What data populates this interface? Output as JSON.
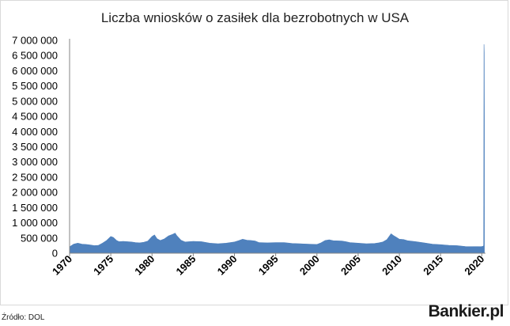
{
  "chart_data": {
    "type": "area",
    "title": "Liczba wniosków o zasiłek dla bezrobotnych w USA",
    "xlabel": "",
    "ylabel": "",
    "series_color": "#4f81bd",
    "xlim": [
      1970,
      2020.45
    ],
    "ylim": [
      0,
      7000000
    ],
    "ytick_labels": [
      "0",
      "500 000",
      "1 000 000",
      "1 500 000",
      "2 000 000",
      "2 500 000",
      "3 000 000",
      "3 500 000",
      "4 000 000",
      "4 500 000",
      "5 000 000",
      "5 500 000",
      "6 000 000",
      "6 500 000",
      "7 000 000"
    ],
    "xtick_labels": [
      "1970",
      "1975",
      "1980",
      "1985",
      "1990",
      "1995",
      "2000",
      "2005",
      "2010",
      "2015",
      "2020"
    ],
    "x": [
      1970,
      1970.5,
      1971,
      1971.5,
      1972,
      1972.5,
      1973,
      1973.5,
      1974,
      1974.5,
      1975,
      1975.3,
      1975.7,
      1976,
      1976.5,
      1977,
      1977.5,
      1978,
      1978.5,
      1979,
      1979.5,
      1980,
      1980.3,
      1980.6,
      1981,
      1981.5,
      1982,
      1982.5,
      1982.8,
      1983,
      1983.5,
      1984,
      1984.5,
      1985,
      1986,
      1987,
      1988,
      1989,
      1990,
      1990.5,
      1991,
      1991.5,
      1992,
      1992.5,
      1993,
      1994,
      1995,
      1996,
      1997,
      1998,
      1999,
      2000,
      2000.5,
      2001,
      2001.5,
      2002,
      2003,
      2003.5,
      2004,
      2005,
      2006,
      2007,
      2007.5,
      2008,
      2008.5,
      2009,
      2009.3,
      2009.6,
      2010,
      2010.5,
      2011,
      2012,
      2013,
      2014,
      2015,
      2016,
      2017,
      2018,
      2019,
      2019.5,
      2020,
      2020.2,
      2020.23,
      2020.25,
      2020.27,
      2020.3,
      2020.32
    ],
    "values": [
      210000,
      300000,
      330000,
      300000,
      290000,
      270000,
      250000,
      260000,
      330000,
      420000,
      550000,
      520000,
      420000,
      380000,
      390000,
      380000,
      370000,
      350000,
      340000,
      360000,
      400000,
      550000,
      600000,
      480000,
      420000,
      470000,
      570000,
      620000,
      660000,
      580000,
      430000,
      370000,
      380000,
      390000,
      380000,
      330000,
      310000,
      330000,
      370000,
      410000,
      460000,
      430000,
      420000,
      400000,
      350000,
      340000,
      350000,
      350000,
      320000,
      310000,
      300000,
      290000,
      340000,
      420000,
      440000,
      410000,
      400000,
      380000,
      350000,
      330000,
      310000,
      320000,
      340000,
      370000,
      450000,
      640000,
      580000,
      530000,
      460000,
      450000,
      410000,
      380000,
      340000,
      300000,
      280000,
      260000,
      250000,
      220000,
      215000,
      215000,
      220000,
      230000,
      280000,
      3300000,
      6870000,
      6600000,
      4400000
    ]
  },
  "footer": {
    "source": "Źródło: DOL",
    "brand": "Bankier.pl"
  }
}
